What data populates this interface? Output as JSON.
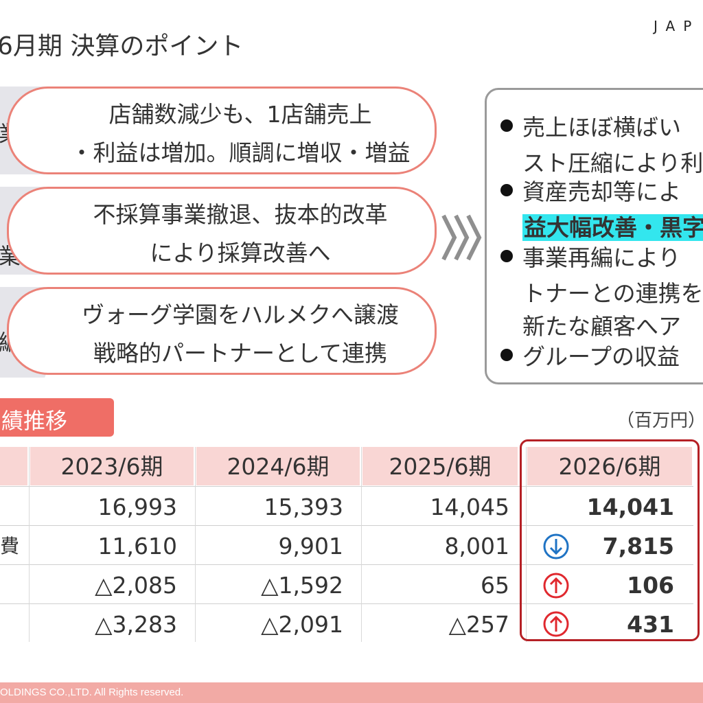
{
  "header": {
    "title": "6月期 決算のポイント",
    "logo_text": "JAP"
  },
  "categories": [
    {
      "tab_label": "業",
      "text_line1": "店舗数減少も、1店舗売上",
      "text_line2": "・利益は増加。順調に増収・増益"
    },
    {
      "tab_label": "業",
      "text_line1": "不採算事業撤退、抜本的改革",
      "text_line2": "により採算改善へ"
    },
    {
      "tab_label": "編",
      "text_line1": "ヴォーグ学園をハルメクへ譲渡",
      "text_line2": "戦略的パートナーとして連携"
    }
  ],
  "summary": {
    "lines": [
      {
        "text": "売上ほぼ横ばい",
        "bullet": true
      },
      {
        "text": "スト圧縮により利",
        "bullet": false
      },
      {
        "text": "資産売却等によ",
        "bullet": true
      },
      {
        "text": "益大幅改善・黒字",
        "bullet": false,
        "highlight": true
      },
      {
        "text": "事業再編により",
        "bullet": true
      },
      {
        "text": "トナーとの連携を",
        "bullet": false
      },
      {
        "text": "新たな顧客へア",
        "bullet": false
      },
      {
        "text": "グループの収益",
        "bullet": true
      }
    ]
  },
  "performance": {
    "section_title": "績推移",
    "unit": "（百万円）",
    "columns": [
      "2023/6期",
      "2024/6期",
      "2025/6期",
      "2026/6期"
    ],
    "rows": [
      {
        "label": "",
        "values": [
          "16,993",
          "15,393",
          "14,045",
          "14,041"
        ],
        "trend": ""
      },
      {
        "label": "費",
        "values": [
          "11,610",
          "9,901",
          "8,001",
          "7,815"
        ],
        "trend": "down"
      },
      {
        "label": "",
        "values": [
          "△2,085",
          "△1,592",
          "65",
          "106"
        ],
        "trend": "up"
      },
      {
        "label": "",
        "values": [
          "△3,283",
          "△2,091",
          "△257",
          "431"
        ],
        "trend": "up"
      }
    ]
  },
  "colors": {
    "accent": "#ef6e66",
    "pill_border": "#eb8278",
    "highlight": "#33e6ee",
    "frame": "#b52025",
    "up_arrow": "#e0282e",
    "down_arrow": "#1f73c4"
  },
  "footer": {
    "copyright": "OLDINGS CO.,LTD. All Rights reserved."
  }
}
